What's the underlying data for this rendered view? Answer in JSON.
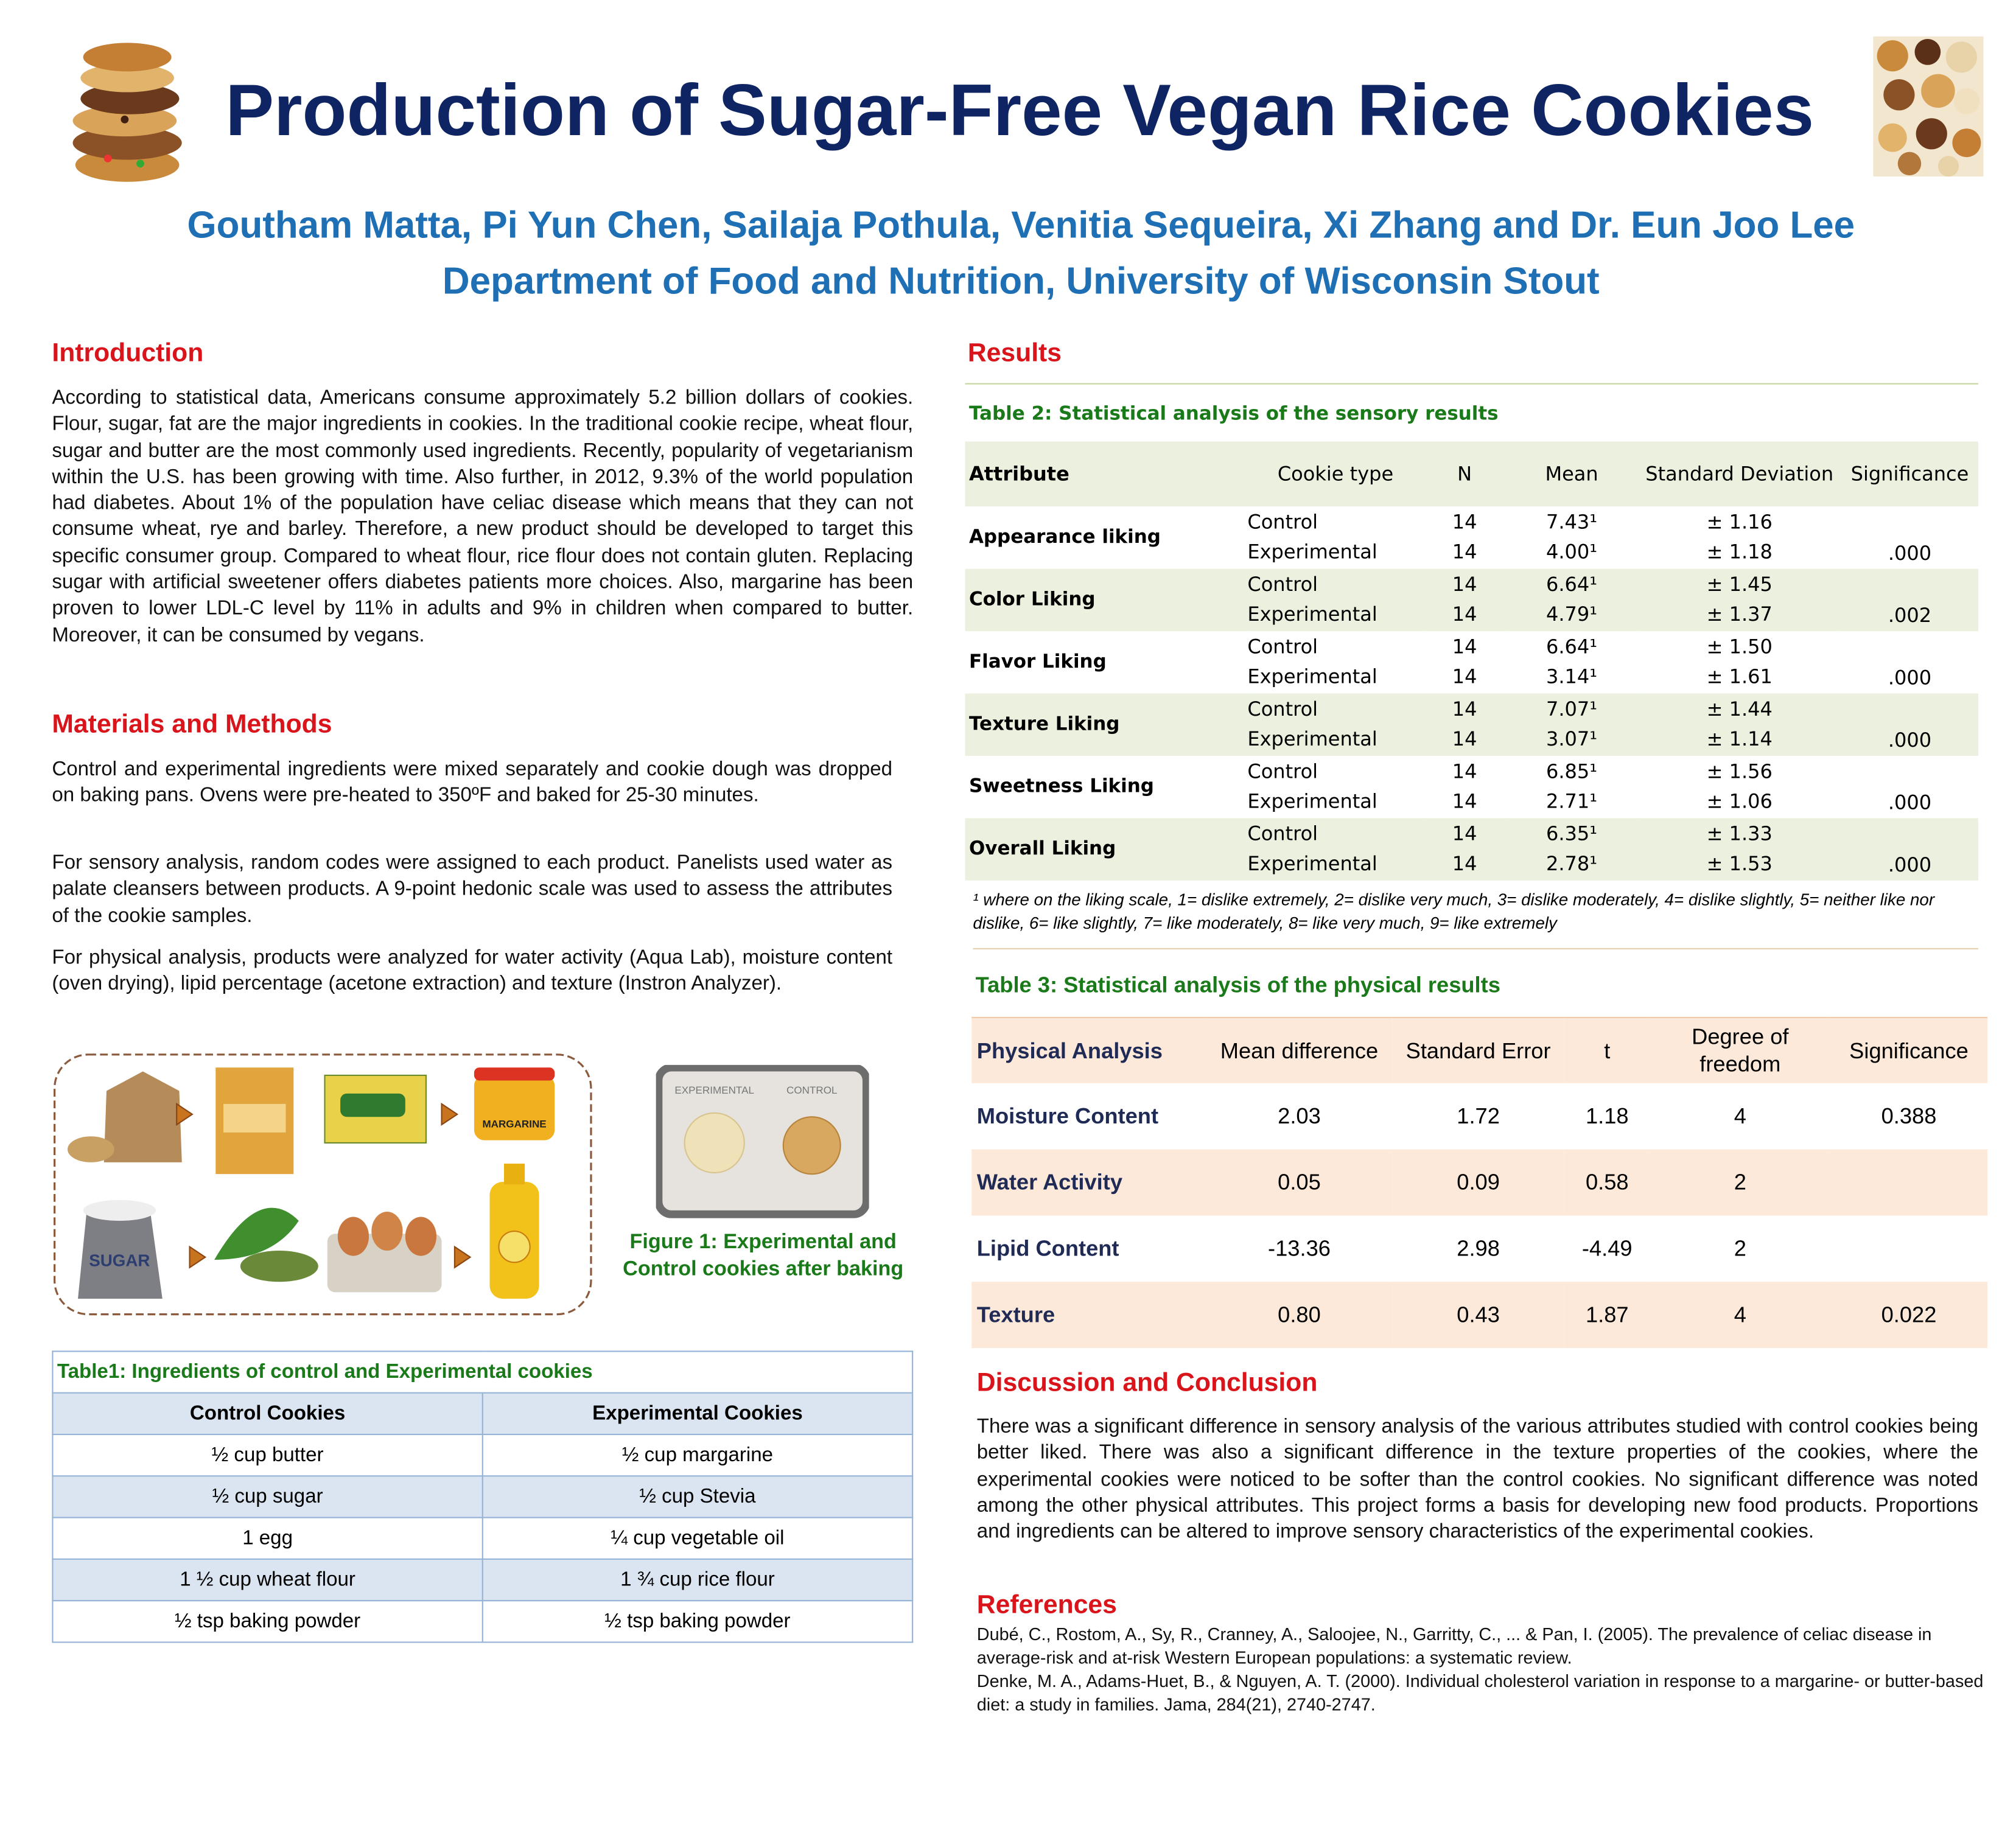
{
  "header": {
    "title": "Production of Sugar-Free Vegan Rice Cookies",
    "authors": "Goutham Matta, Pi Yun Chen, Sailaja Pothula, Venitia Sequeira, Xi Zhang and Dr. Eun Joo Lee",
    "affiliation": "Department of Food and Nutrition, University of Wisconsin Stout"
  },
  "introduction": {
    "heading": "Introduction",
    "text": "According to statistical data, Americans consume approximately 5.2 billion dollars of cookies. Flour, sugar, fat are the major ingredients in cookies. In the traditional cookie recipe, wheat flour, sugar and butter are the most commonly used ingredients. Recently, popularity of vegetarianism within the U.S. has been growing with time. Also further, in 2012, 9.3% of the world population had diabetes. About 1% of the population have celiac disease which means that they can not consume wheat, rye and barley. Therefore, a new product should be developed to target this specific consumer group. Compared to wheat flour, rice flour does not contain gluten. Replacing sugar with artificial sweetener offers diabetes patients more choices. Also, margarine has been proven to lower LDL-C level by 11% in adults and 9% in children when compared to butter. Moreover, it can be consumed by vegans."
  },
  "methods": {
    "heading": "Materials and Methods",
    "paragraphs": [
      "Control and experimental ingredients were mixed separately and cookie dough was dropped on baking pans. Ovens were pre-heated to 350ºF and baked for 25-30 minutes.",
      "For sensory analysis, random codes were assigned to each product. Panelists used water as palate cleansers between products. A 9-point hedonic scale was used to assess the attributes of the cookie samples.",
      "For physical analysis, products were analyzed for water activity (Aqua Lab), moisture content (oven drying), lipid percentage (acetone extraction) and texture (Instron Analyzer)."
    ]
  },
  "ingredients_picture": {
    "labels": [
      "SUGAR",
      "MARGARINE"
    ]
  },
  "figure1": {
    "photo_labels": [
      "EXPERIMENTAL",
      "CONTROL"
    ],
    "caption": "Figure 1: Experimental and Control cookies after baking"
  },
  "table1": {
    "title": "Table1: Ingredients of control and Experimental cookies",
    "columns": [
      "Control Cookies",
      "Experimental Cookies"
    ],
    "rows": [
      [
        "½ cup butter",
        "½ cup margarine"
      ],
      [
        "½ cup sugar",
        "½ cup Stevia"
      ],
      [
        "1 egg",
        "¼ cup vegetable oil"
      ],
      [
        "1 ½ cup wheat flour",
        "1 ¾  cup rice flour"
      ],
      [
        "½ tsp baking powder",
        "½ tsp baking powder"
      ]
    ]
  },
  "results": {
    "heading": "Results"
  },
  "table2": {
    "title": "Table 2: Statistical analysis of the sensory results",
    "columns": [
      "Attribute",
      "Cookie type",
      "N",
      "Mean",
      "Standard Deviation",
      "Significance"
    ],
    "rows": [
      {
        "attribute": "Appearance liking",
        "entries": [
          {
            "type": "Control",
            "n": 14,
            "mean": "7.43¹",
            "sd": "± 1.16"
          },
          {
            "type": "Experimental",
            "n": 14,
            "mean": "4.00¹",
            "sd": "± 1.18"
          }
        ],
        "significance": ".000"
      },
      {
        "attribute": "Color Liking",
        "entries": [
          {
            "type": "Control",
            "n": 14,
            "mean": "6.64¹",
            "sd": "± 1.45"
          },
          {
            "type": "Experimental",
            "n": 14,
            "mean": "4.79¹",
            "sd": "± 1.37"
          }
        ],
        "significance": ".002"
      },
      {
        "attribute": "Flavor Liking",
        "entries": [
          {
            "type": "Control",
            "n": 14,
            "mean": "6.64¹",
            "sd": "± 1.50"
          },
          {
            "type": "Experimental",
            "n": 14,
            "mean": "3.14¹",
            "sd": "± 1.61"
          }
        ],
        "significance": ".000"
      },
      {
        "attribute": "Texture Liking",
        "entries": [
          {
            "type": "Control",
            "n": 14,
            "mean": "7.07¹",
            "sd": "± 1.44"
          },
          {
            "type": "Experimental",
            "n": 14,
            "mean": "3.07¹",
            "sd": "± 1.14"
          }
        ],
        "significance": ".000"
      },
      {
        "attribute": "Sweetness Liking",
        "entries": [
          {
            "type": "Control",
            "n": 14,
            "mean": "6.85¹",
            "sd": "± 1.56"
          },
          {
            "type": "Experimental",
            "n": 14,
            "mean": "2.71¹",
            "sd": "± 1.06"
          }
        ],
        "significance": ".000"
      },
      {
        "attribute": "Overall Liking",
        "entries": [
          {
            "type": "Control",
            "n": 14,
            "mean": "6.35¹",
            "sd": "± 1.33"
          },
          {
            "type": "Experimental",
            "n": 14,
            "mean": "2.78¹",
            "sd": "± 1.53"
          }
        ],
        "significance": ".000"
      }
    ],
    "footnote": "¹ where on the liking scale, 1= dislike extremely, 2= dislike very much, 3= dislike moderately, 4= dislike slightly, 5= neither like nor dislike, 6= like slightly, 7= like moderately, 8= like very much, 9= like extremely"
  },
  "table3": {
    "title": "Table 3: Statistical analysis of the physical results",
    "columns": [
      "Physical Analysis",
      "Mean difference",
      "Standard Error",
      "t",
      "Degree of freedom",
      "Significance"
    ],
    "rows": [
      [
        "Moisture Content",
        "2.03",
        "1.72",
        "1.18",
        "4",
        "0.388"
      ],
      [
        "Water Activity",
        "0.05",
        "0.09",
        "0.58",
        "2",
        null
      ],
      [
        "Lipid Content",
        "-13.36",
        "2.98",
        "-4.49",
        "2",
        null
      ],
      [
        "Texture",
        "0.80",
        "0.43",
        "1.87",
        "4",
        "0.022"
      ]
    ]
  },
  "discussion": {
    "heading": "Discussion and Conclusion",
    "text": "There was a significant difference in sensory analysis of the various attributes studied with control cookies being better liked. There was also a significant difference in the texture properties of the cookies, where the experimental cookies were noticed to be softer than the control cookies. No significant difference was noted among the other physical attributes. This project forms a basis for developing new food products. Proportions and ingredients can be altered to improve sensory characteristics of the experimental cookies."
  },
  "references": {
    "heading": "References",
    "items": [
      "Dubé, C., Rostom, A., Sy, R., Cranney, A., Saloojee, N., Garritty, C., ... & Pan, I. (2005). The prevalence of celiac disease in average-risk and at-risk Western European populations: a systematic review.",
      "Denke, M. A., Adams-Huet, B., & Nguyen, A. T. (2000). Individual cholesterol variation in response to a margarine- or butter-based diet: a study in families. Jama, 284(21), 2740-2747."
    ]
  }
}
